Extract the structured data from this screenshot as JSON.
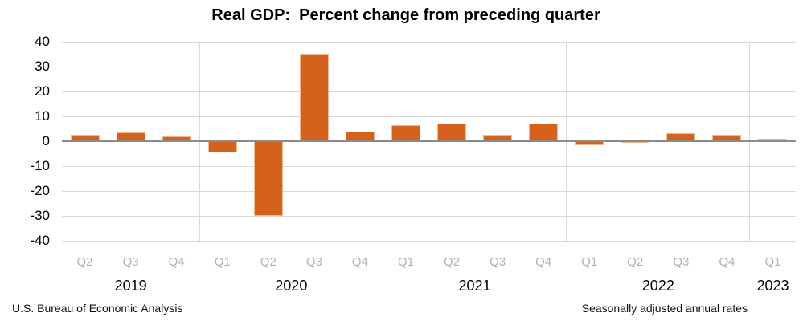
{
  "source_note": "U.S. Bureau of Economic Analysis",
  "rate_note": "Seasonally adjusted annual rates",
  "chart_data": {
    "type": "bar",
    "title": "Real GDP:  Percent change from preceding quarter",
    "xlabel": "",
    "ylabel": "",
    "ylim": [
      -40,
      40
    ],
    "y_ticks": [
      40,
      30,
      20,
      10,
      0,
      -10,
      -20,
      -30,
      -40
    ],
    "grid": true,
    "legend": false,
    "categories": [
      "Q2",
      "Q3",
      "Q4",
      "Q1",
      "Q2",
      "Q3",
      "Q4",
      "Q1",
      "Q2",
      "Q3",
      "Q4",
      "Q1",
      "Q2",
      "Q3",
      "Q4",
      "Q1"
    ],
    "values": [
      2.7,
      3.6,
      1.8,
      -4.6,
      -29.9,
      35.3,
      3.9,
      6.3,
      7.0,
      2.7,
      7.0,
      -1.6,
      -0.6,
      3.2,
      2.6,
      1.1
    ],
    "year_groups": [
      {
        "year": "2019",
        "quarters": 3
      },
      {
        "year": "2020",
        "quarters": 4
      },
      {
        "year": "2021",
        "quarters": 4
      },
      {
        "year": "2022",
        "quarters": 4
      },
      {
        "year": "2023",
        "quarters": 1
      }
    ],
    "colors": {
      "bar_fill": "#d4621c",
      "bar_edge": "#f2b98f",
      "gridline": "#d9d9d9",
      "zero_line": "#8c8c8c",
      "quarter_label": "#b1b1b1",
      "text": "#000000"
    }
  }
}
